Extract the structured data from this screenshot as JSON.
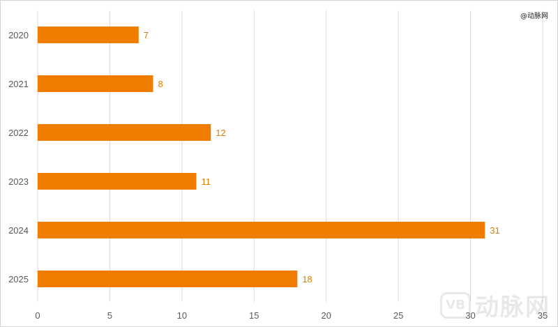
{
  "source_note": "@动脉网",
  "watermark": {
    "badge": "VB",
    "text": "动脉网"
  },
  "colors": {
    "bar": "#f07c00",
    "label": "#e07b00",
    "grid": "#d9d9d9",
    "axis_text": "#595959"
  },
  "chart_data": {
    "type": "bar",
    "orientation": "horizontal",
    "title": "",
    "xlabel": "",
    "ylabel": "",
    "categories": [
      "2020",
      "2021",
      "2022",
      "2023",
      "2024",
      "2025"
    ],
    "values": [
      7,
      8,
      12,
      11,
      31,
      18
    ],
    "xlim": [
      0,
      35
    ],
    "xticks": [
      0,
      5,
      10,
      15,
      20,
      25,
      30,
      35
    ],
    "grid": "vertical",
    "legend": "none"
  }
}
